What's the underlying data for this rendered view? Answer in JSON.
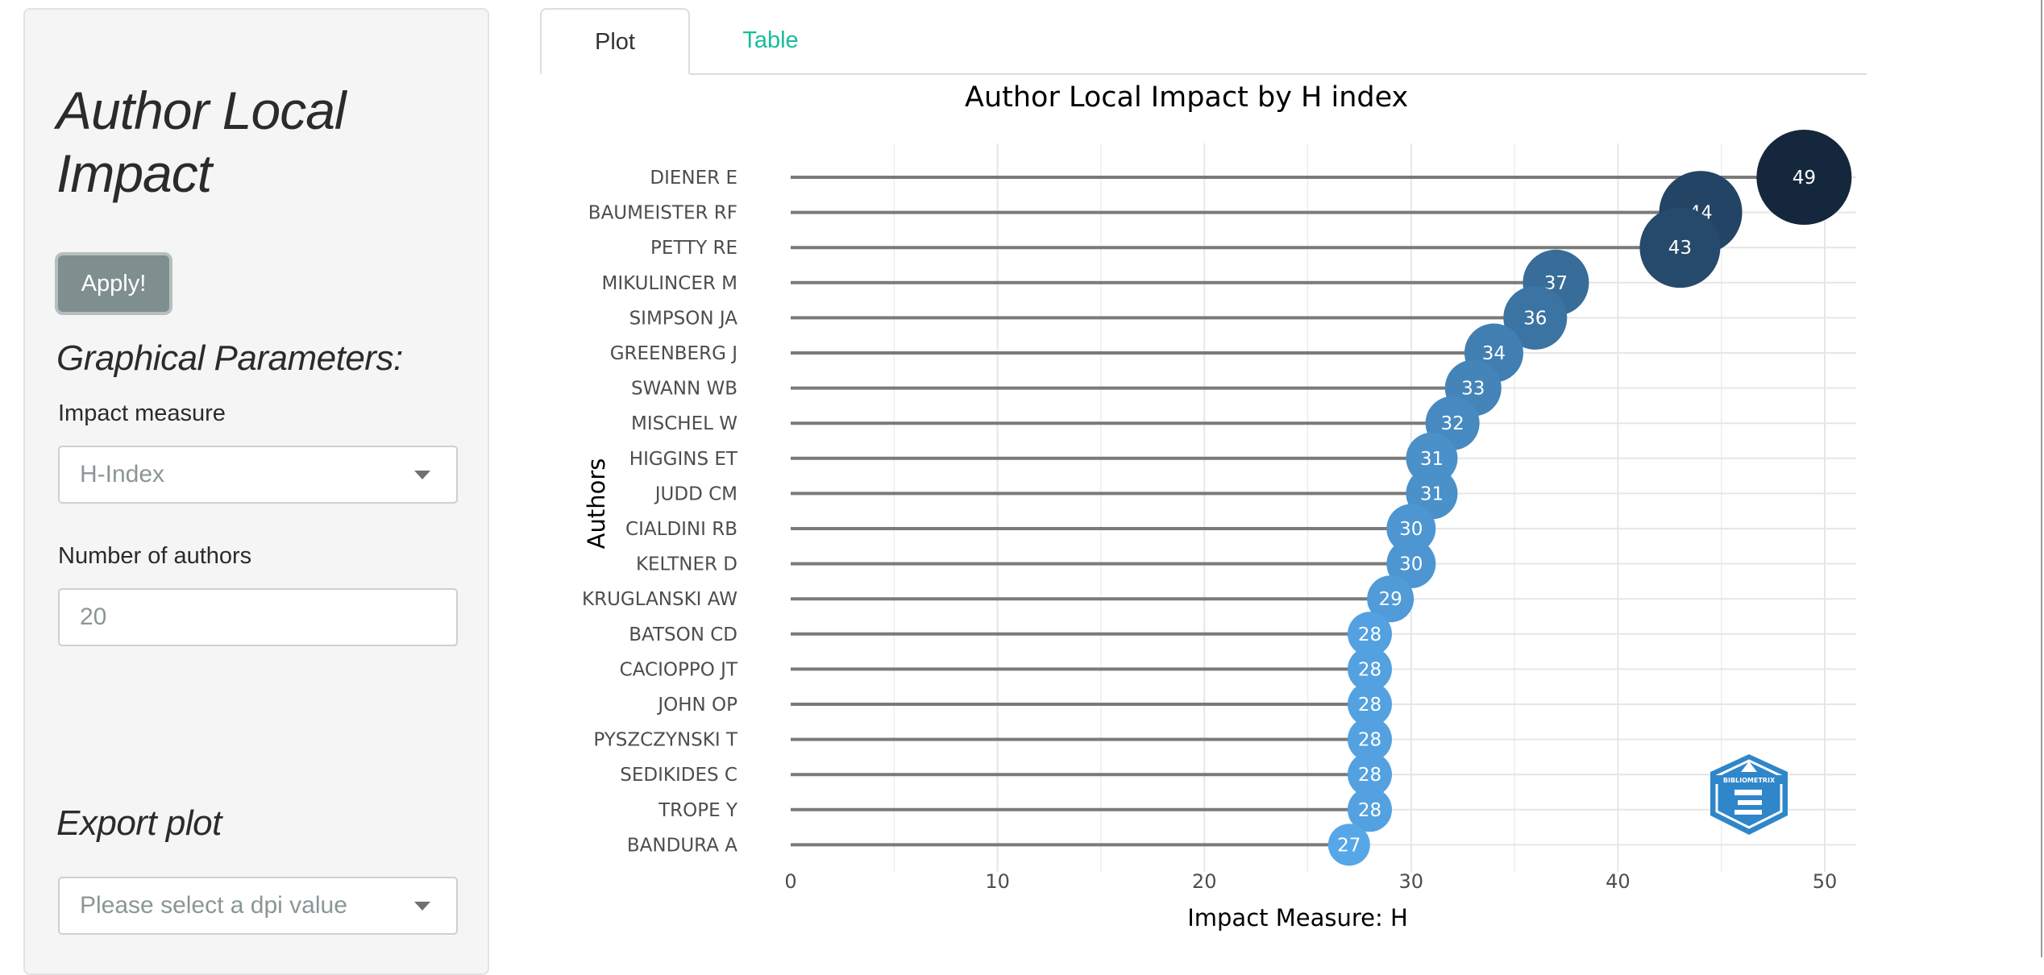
{
  "sidebar": {
    "title": "Author Local Impact",
    "apply_label": "Apply!",
    "graphical_heading": "Graphical Parameters:",
    "impact_label": "Impact measure",
    "impact_value": "H-Index",
    "num_authors_label": "Number of authors",
    "num_authors_value": "20",
    "export_heading": "Export plot",
    "dpi_placeholder": "Please select a dpi value"
  },
  "tabs": {
    "plot": "Plot",
    "table": "Table"
  },
  "logo_text": "BIBLIOMETRIX",
  "chart_data": {
    "type": "scatter",
    "title": "Author Local Impact by H index",
    "xlabel": "Impact Measure: H",
    "ylabel": "Authors",
    "xlim": [
      0,
      51.5
    ],
    "xticks": [
      0,
      10,
      20,
      30,
      40,
      50
    ],
    "grid": true,
    "authors": [
      "DIENER E",
      "BAUMEISTER RF",
      "PETTY RE",
      "MIKULINCER M",
      "SIMPSON JA",
      "GREENBERG J",
      "SWANN WB",
      "MISCHEL W",
      "HIGGINS ET",
      "JUDD CM",
      "CIALDINI RB",
      "KELTNER D",
      "KRUGLANSKI AW",
      "BATSON CD",
      "CACIOPPO JT",
      "JOHN OP",
      "PYSZCZYNSKI T",
      "SEDIKIDES C",
      "TROPE Y",
      "BANDURA A"
    ],
    "values": [
      49,
      44,
      43,
      37,
      36,
      34,
      33,
      32,
      31,
      31,
      30,
      30,
      29,
      28,
      28,
      28,
      28,
      28,
      28,
      27
    ],
    "colors": {
      "low": "#56a7e8",
      "high": "#14273d",
      "stem": "#7a7a7a",
      "grid": "#e6e6e6",
      "label": "#ffffff"
    }
  }
}
